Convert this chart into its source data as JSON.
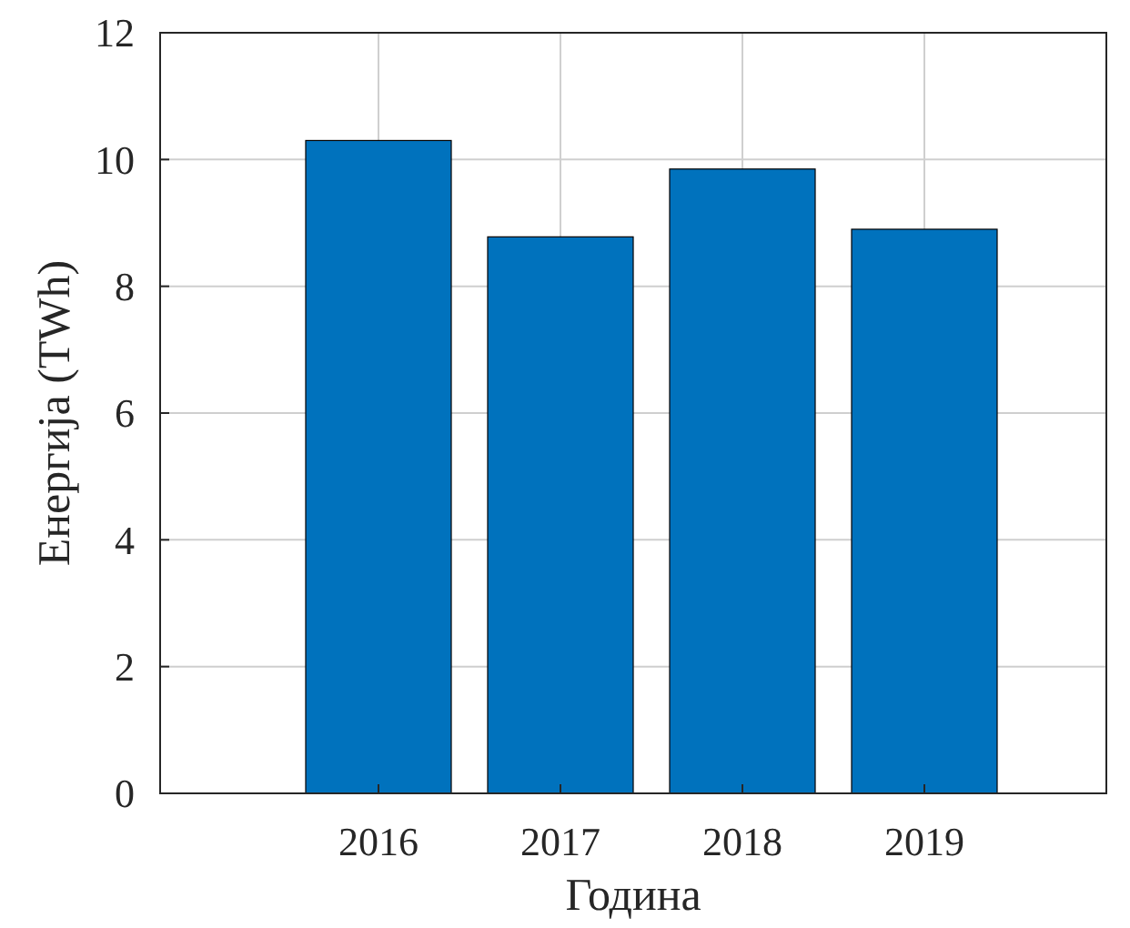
{
  "chart_data": {
    "type": "bar",
    "xlabel": "Година",
    "ylabel": "Енергија (TWh)",
    "x": [
      2016,
      2017,
      2018,
      2019
    ],
    "values": [
      10.3,
      8.78,
      9.85,
      8.9
    ],
    "color": "#0072bd",
    "xlim": [
      2014.8,
      2020
    ],
    "xticks": [
      2016,
      2017,
      2018,
      2019
    ],
    "ylim": [
      0,
      12
    ],
    "yticks": [
      0,
      2,
      4,
      6,
      8,
      10,
      12
    ],
    "grid": true
  }
}
